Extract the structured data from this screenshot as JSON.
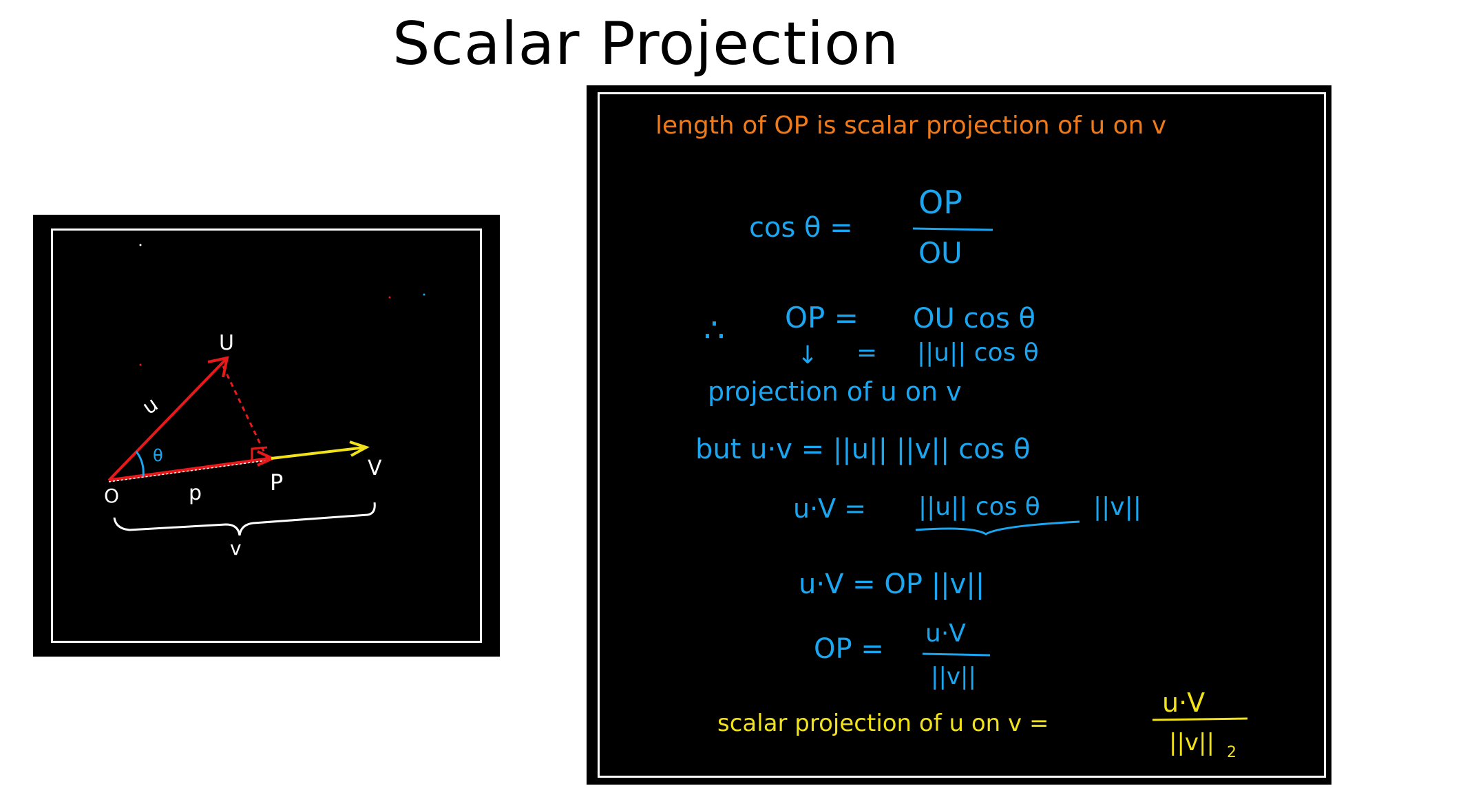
{
  "title": "Scalar Projection",
  "colors": {
    "red": "#e8191b",
    "yellow": "#f2e21a",
    "white": "#ffffff",
    "blue": "#1aa6f0",
    "orange": "#f07a1a"
  },
  "diagram": {
    "label_O": "O",
    "label_U": "U",
    "label_u": "u",
    "label_theta": "θ",
    "label_p_lower": "p",
    "label_P": "P",
    "label_V": "V",
    "label_v": "v"
  },
  "notes": {
    "line1": "length of OP is scalar projection of u on v",
    "cos_lhs": "cos θ =",
    "cos_num": "OP",
    "cos_den": "OU",
    "therefore": "∴",
    "op_eq": "OP =",
    "op_rhs": "OU cos θ",
    "arrow": "↓",
    "eq2": "=",
    "norm_cos": "||u|| cos θ",
    "proj_label": "projection of u on v",
    "but_line": "but u·v = ||u|| ||v|| cos θ",
    "uv_lhs": "u·V =",
    "uv_under": "||u|| cos θ",
    "uv_rhs": "||v||",
    "uv2": "u·V = OP ||v||",
    "op_lhs": "OP =",
    "op_num": "u·V",
    "op_den": "||v||",
    "final_lhs": "scalar projection of u on v =",
    "final_num": "u·V",
    "final_den": "||v||",
    "final_sub": "2"
  }
}
